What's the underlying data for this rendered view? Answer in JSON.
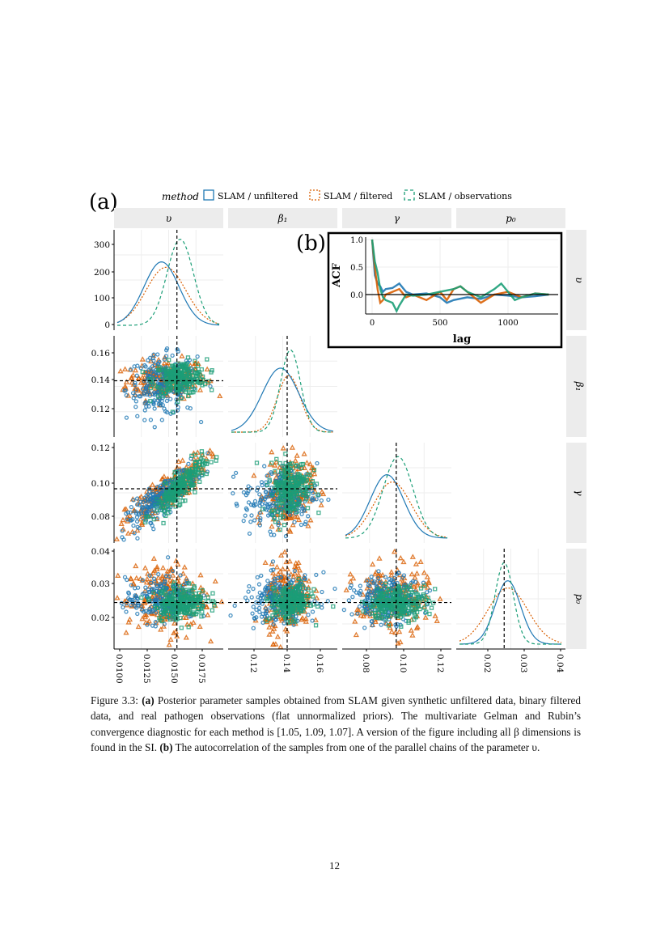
{
  "figure": {
    "panel_a_label": "(a)",
    "panel_b_label": "(b)",
    "legend": {
      "title": "method",
      "entries": [
        {
          "label": "SLAM / unfiltered",
          "color": "#1f78b4",
          "line": "solid"
        },
        {
          "label": "SLAM / filtered",
          "color": "#d95f02",
          "line": "dotted"
        },
        {
          "label": "SLAM / observations",
          "color": "#1b9e77",
          "line": "dashed"
        }
      ]
    },
    "params": [
      "υ",
      "β₁",
      "γ",
      "p₀"
    ],
    "chart_data": [
      {
        "type": "scatter",
        "title": "pairs plot of posterior samples",
        "variables": [
          "υ",
          "β₁",
          "γ",
          "p₀"
        ],
        "true_values": {
          "υ": 0.0152,
          "β₁": 0.14,
          "γ": 0.096,
          "p₀": 0.0245
        },
        "x_ticks": [
          [
            "0.0100",
            "0.0125",
            "0.0150",
            "0.0175"
          ],
          [
            "0.12",
            "0.14",
            "0.16"
          ],
          [
            "0.08",
            "0.10",
            "0.12"
          ],
          [
            "0.02",
            "0.03",
            "0.04"
          ]
        ],
        "y_ticks": [
          [
            "0",
            "100",
            "200",
            "300"
          ],
          [
            "0.12",
            "0.14",
            "0.16"
          ],
          [
            "0.08",
            "0.10",
            "0.12"
          ],
          [
            "0.02",
            "0.03",
            "0.04"
          ]
        ],
        "posterior_approx": {
          "SLAM / unfiltered": {
            "υ": [
              0.0138,
              0.0016
            ],
            "β₁": [
              0.136,
              0.011
            ],
            "γ": [
              0.091,
              0.009
            ],
            "p₀": [
              0.0255,
              0.0035
            ]
          },
          "SLAM / filtered": {
            "υ": [
              0.0142,
              0.0018
            ],
            "β₁": [
              0.141,
              0.007
            ],
            "γ": [
              0.094,
              0.01
            ],
            "p₀": [
              0.0255,
              0.0055
            ]
          },
          "SLAM / observations": {
            "υ": [
              0.0155,
              0.0012
            ],
            "β₁": [
              0.142,
              0.006
            ],
            "γ": [
              0.097,
              0.008
            ],
            "p₀": [
              0.0245,
              0.0025
            ]
          }
        }
      },
      {
        "type": "line",
        "xlabel": "lag",
        "ylabel": "ACF",
        "xlim": [
          -50,
          1350
        ],
        "ylim": [
          -0.35,
          1.05
        ],
        "x_ticks": [
          "0",
          "500",
          "1000"
        ],
        "y_ticks": [
          "0.0",
          "0.5",
          "1.0"
        ],
        "series": [
          {
            "name": "SLAM / unfiltered",
            "x": [
              0,
              20,
              40,
              60,
              80,
              100,
              150,
              200,
              250,
              300,
              400,
              500,
              550,
              600,
              700,
              800,
              900,
              1000,
              1100,
              1200,
              1300
            ],
            "y": [
              1.0,
              0.35,
              0.2,
              0.15,
              0.05,
              0.1,
              0.12,
              0.2,
              0.05,
              0.0,
              0.02,
              -0.05,
              -0.15,
              -0.1,
              -0.05,
              -0.08,
              0.0,
              -0.02,
              -0.05,
              -0.03,
              0.0
            ]
          },
          {
            "name": "SLAM / filtered",
            "x": [
              0,
              20,
              40,
              60,
              80,
              100,
              150,
              200,
              250,
              300,
              400,
              500,
              550,
              600,
              650,
              700,
              800,
              900,
              1000,
              1100,
              1200,
              1300
            ],
            "y": [
              1.0,
              0.5,
              0.1,
              -0.15,
              -0.1,
              0.0,
              0.05,
              0.1,
              -0.05,
              0.0,
              -0.1,
              0.05,
              -0.1,
              0.1,
              0.15,
              0.05,
              -0.15,
              0.0,
              0.05,
              -0.05,
              0.02,
              0.0
            ]
          },
          {
            "name": "SLAM / observations",
            "x": [
              0,
              20,
              40,
              60,
              80,
              100,
              150,
              180,
              200,
              250,
              300,
              400,
              500,
              600,
              650,
              700,
              800,
              900,
              950,
              1000,
              1050,
              1100,
              1200,
              1300
            ],
            "y": [
              1.0,
              0.6,
              0.4,
              0.1,
              -0.05,
              -0.1,
              -0.15,
              -0.3,
              -0.2,
              0.0,
              -0.02,
              0.0,
              0.05,
              0.1,
              0.15,
              0.05,
              -0.05,
              0.1,
              0.2,
              0.05,
              -0.1,
              -0.05,
              0.02,
              0.0
            ]
          }
        ]
      }
    ]
  },
  "caption": {
    "prefix": "Figure 3.3:",
    "a_label": "(a)",
    "text_a": "Posterior parameter samples obtained from SLAM given synthetic unfiltered data, binary filtered data, and real pathogen observations (flat unnormalized priors). The multivariate Gelman and Rubin’s convergence diagnostic for each method is [1.05, 1.09, 1.07]. A version of the figure including all β dimensions is found in the SI.",
    "b_label": "(b)",
    "text_b": "The autocorrelation of the samples from one of the parallel chains of the parameter υ."
  },
  "page_number": "12"
}
